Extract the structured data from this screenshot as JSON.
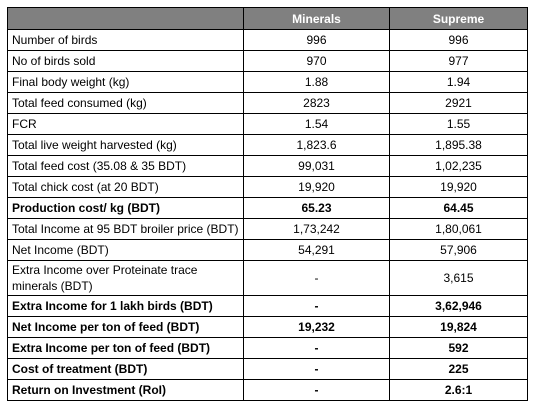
{
  "table": {
    "columns": [
      "Minerals",
      "Supreme"
    ],
    "rows": [
      {
        "cells": [
          "Number of birds",
          "996",
          "996"
        ]
      },
      {
        "cells": [
          "No of birds sold",
          "970",
          "977"
        ]
      },
      {
        "cells": [
          "Final body weight (kg)",
          "1.88",
          "1.94"
        ]
      },
      {
        "cells": [
          "Total feed consumed (kg)",
          "2823",
          "2921"
        ]
      },
      {
        "cells": [
          "FCR",
          "1.54",
          "1.55"
        ]
      },
      {
        "cells": [
          "Total live weight harvested (kg)",
          "1,823.6",
          "1,895.38"
        ]
      },
      {
        "cells": [
          "Total feed cost (35.08 & 35 BDT)",
          "99,031",
          "1,02,235"
        ]
      },
      {
        "cells": [
          "Total chick cost (at 20 BDT)",
          "19,920",
          "19,920"
        ]
      },
      {
        "cells": [
          "Production cost/ kg (BDT)",
          "65.23",
          "64.45"
        ],
        "bold": true
      },
      {
        "cells": [
          "Total Income at 95 BDT broiler price (BDT)",
          "1,73,242",
          "1,80,061"
        ]
      },
      {
        "cells": [
          "Net Income (BDT)",
          "54,291",
          "57,906"
        ]
      },
      {
        "cells": [
          "Extra Income over Proteinate trace minerals (BDT)",
          "-",
          "3,615"
        ]
      },
      {
        "cells": [
          "Extra Income for 1 lakh birds (BDT)",
          "-",
          "3,62,946"
        ],
        "bold": true
      },
      {
        "cells": [
          "Net Income per ton of feed (BDT)",
          "19,232",
          "19,824"
        ],
        "bold": true
      },
      {
        "cells": [
          "Extra Income per ton of feed (BDT)",
          "-",
          "592"
        ],
        "bold": true
      },
      {
        "cells": [
          "Cost of treatment (BDT)",
          "-",
          "225"
        ],
        "bold": true
      },
      {
        "cells": [
          "Return on Investment (RoI)",
          "-",
          "2.6:1"
        ],
        "bold": true
      }
    ]
  }
}
